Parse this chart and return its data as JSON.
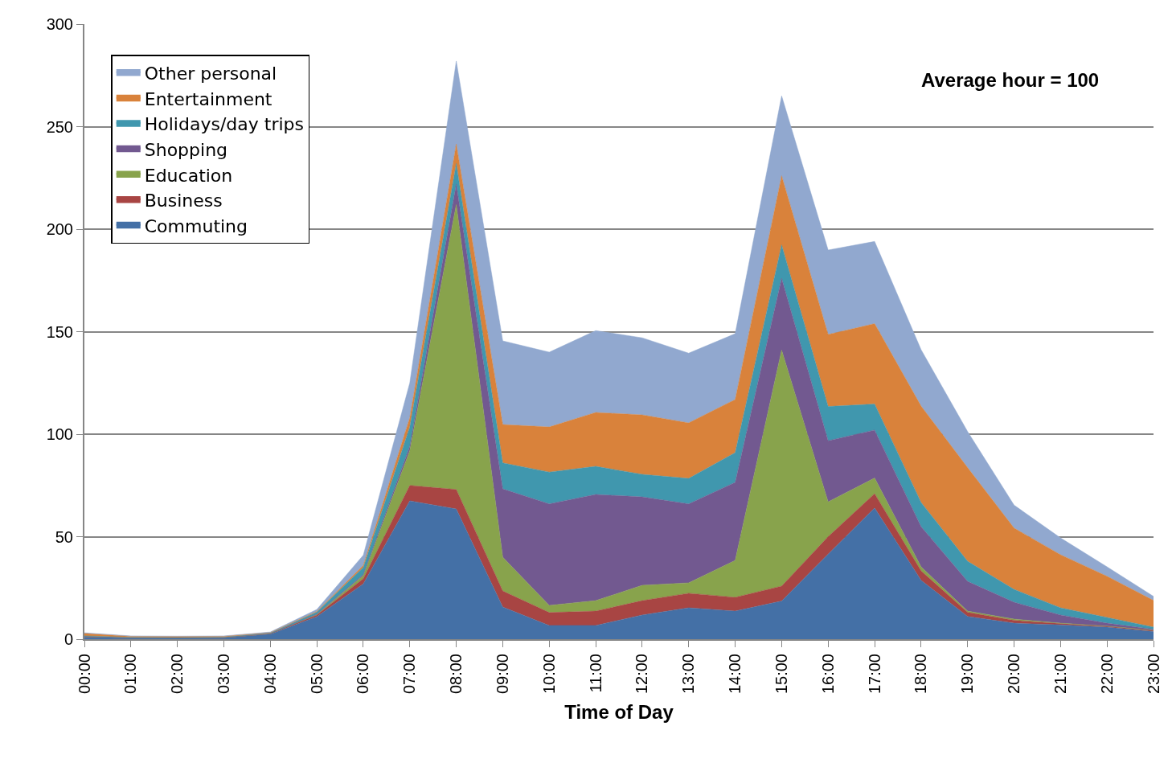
{
  "chart_data": {
    "type": "area",
    "stacked": true,
    "xlabel": "Time of Day",
    "annotations": [
      "Average hour = 100"
    ],
    "categories": [
      "00:00",
      "01:00",
      "02:00",
      "03:00",
      "04:00",
      "05:00",
      "06:00",
      "07:00",
      "08:00",
      "09:00",
      "10:00",
      "11:00",
      "12:00",
      "13:00",
      "14:00",
      "15:00",
      "16:00",
      "17:00",
      "18:00",
      "19:00",
      "20:00",
      "21:00",
      "22:00",
      "23:00"
    ],
    "ylim": [
      0,
      300
    ],
    "yticks": [
      0,
      50,
      100,
      150,
      200,
      250,
      300
    ],
    "grid": "y",
    "legend": "top left",
    "series": [
      {
        "name": "Commuting",
        "color": "#4470a6",
        "values": [
          1,
          0.6,
          0.5,
          0.7,
          2.5,
          11,
          27,
          67.5,
          63.5,
          15.7,
          6.7,
          6.7,
          11.8,
          15.3,
          13.7,
          18.6,
          41.5,
          64,
          28.7,
          11.1,
          7.8,
          7,
          5.9,
          3.7
        ]
      },
      {
        "name": "Business",
        "color": "#a84543",
        "values": [
          0.3,
          0.1,
          0.1,
          0.1,
          0.2,
          0.8,
          2.5,
          7.5,
          9.5,
          7.8,
          6.3,
          7,
          7,
          7.1,
          6.7,
          7.3,
          8.5,
          7,
          4.6,
          2,
          1.4,
          0.6,
          0.4,
          0.5
        ]
      },
      {
        "name": "Education",
        "color": "#88a34c",
        "values": [
          0,
          0,
          0,
          0,
          0,
          0.2,
          1.5,
          17,
          139,
          16.5,
          3.5,
          5.1,
          7.5,
          5.1,
          18,
          115.1,
          17,
          7.6,
          2,
          0.6,
          0.6,
          0.2,
          0.1,
          0.1
        ]
      },
      {
        "name": "Shopping",
        "color": "#725990",
        "values": [
          0,
          0,
          0,
          0,
          0,
          0.2,
          0.5,
          2,
          10,
          33.3,
          49.5,
          51.8,
          43.1,
          38.5,
          38.1,
          35,
          29.8,
          23.4,
          19.6,
          14.5,
          8.2,
          4,
          1.4,
          0.5
        ]
      },
      {
        "name": "Holidays/day trips",
        "color": "#4097ae",
        "values": [
          0.3,
          0.2,
          0.2,
          0.2,
          0.3,
          1,
          3.5,
          9.5,
          10,
          12.7,
          15.5,
          13.7,
          11,
          12.4,
          14.5,
          16.3,
          16.7,
          12.7,
          11.8,
          9.8,
          6.3,
          3.5,
          2.8,
          1.1
        ]
      },
      {
        "name": "Entertainment",
        "color": "#d9823b",
        "values": [
          1.2,
          0.5,
          0.5,
          0.4,
          0.2,
          0.3,
          1,
          4.5,
          9.5,
          18.7,
          22,
          26.3,
          29,
          27.1,
          25.9,
          33.7,
          35.1,
          39.2,
          47,
          45.7,
          29.9,
          25.9,
          20.1,
          13
        ]
      },
      {
        "name": "Other personal",
        "color": "#91a8cf",
        "values": [
          0.3,
          0.2,
          0.2,
          0.2,
          0.3,
          1,
          5,
          17,
          40.5,
          40.8,
          36.5,
          39.9,
          37.6,
          34,
          32.1,
          39,
          41.2,
          40.1,
          27.5,
          17.6,
          11.2,
          8.2,
          4.6,
          2
        ]
      }
    ]
  }
}
